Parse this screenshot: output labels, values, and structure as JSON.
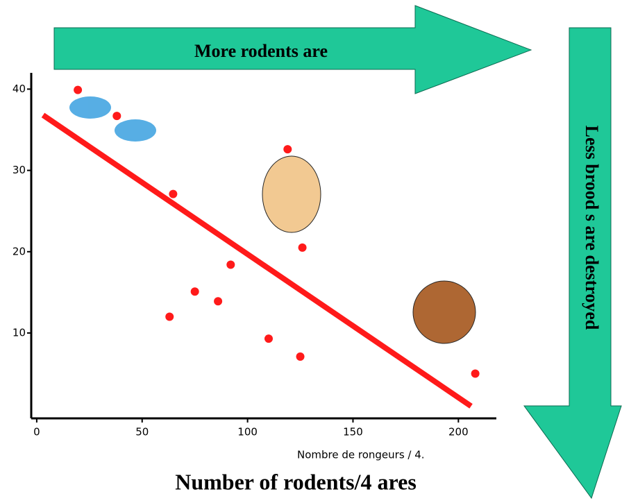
{
  "chart_data": {
    "type": "scatter",
    "top_arrow_text": "More rodents are",
    "side_arrow_text": "Less brood s are destroyed",
    "xlabel_small": "Nombre de rongeurs / 4.",
    "xlabel": "Number of rodents/4 ares",
    "x": [
      19.5,
      38,
      64.7,
      119,
      126,
      92,
      75,
      86,
      63,
      110,
      125,
      208
    ],
    "values": [
      39.9,
      36.7,
      27.1,
      32.6,
      20.5,
      18.4,
      15.1,
      13.9,
      12,
      9.3,
      7.1,
      5.0
    ],
    "color": "#ff1a1a",
    "trend_line": {
      "x": [
        3,
        206
      ],
      "y": [
        36.8,
        1.0
      ]
    },
    "xlim": [
      -2.6,
      218
    ],
    "ylim": [
      -0.5,
      42
    ],
    "xticks": [
      0,
      50,
      100,
      150,
      200
    ],
    "yticks": [
      10,
      20,
      30,
      40
    ]
  }
}
